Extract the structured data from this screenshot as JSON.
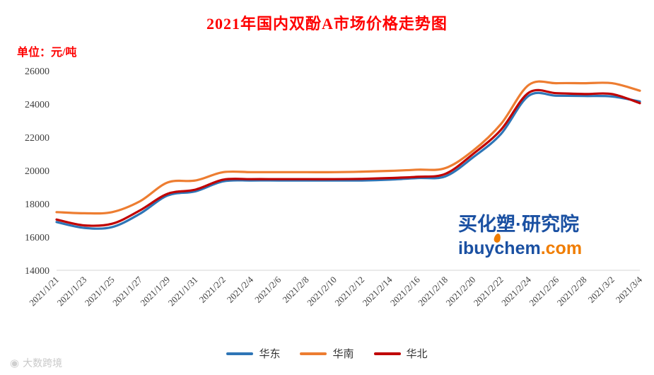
{
  "title": "2021年国内双酚A市场价格走势图",
  "unit_label": "单位：元/吨",
  "watermark": {
    "cn_left": "买化塑",
    "cn_dot": "·",
    "cn_right": "研究院",
    "en_name": "ibuychem",
    "en_suffix": ".com",
    "brand_blue": "#1a50a2",
    "brand_orange": "#f07d00"
  },
  "footer_logo": "大数跨境",
  "colors": {
    "title_red": "#fe0000",
    "axis_text": "#3f3f3f",
    "axis_line": "#d6d6d6"
  },
  "chart_data": {
    "type": "line",
    "title": "2021年国内双酚A市场价格走势图",
    "ylabel": "元/吨",
    "xlabel": "",
    "ylim": [
      14000,
      26000
    ],
    "ytick_step": 2000,
    "grid": false,
    "legend_position": "bottom",
    "categories": [
      "2021/1/21",
      "2021/1/23",
      "2021/1/25",
      "2021/1/27",
      "2021/1/29",
      "2021/1/31",
      "2021/2/2",
      "2021/2/4",
      "2021/2/6",
      "2021/2/8",
      "2021/2/10",
      "2021/2/12",
      "2021/2/14",
      "2021/2/16",
      "2021/2/18",
      "2021/2/20",
      "2021/2/22",
      "2021/2/24",
      "2021/2/26",
      "2021/2/28",
      "2021/3/2",
      "2021/3/4"
    ],
    "series": [
      {
        "name": "华东",
        "color": "#2e75b6",
        "values": [
          16900,
          16550,
          16600,
          17400,
          18500,
          18750,
          19350,
          19400,
          19400,
          19400,
          19400,
          19400,
          19450,
          19550,
          19650,
          20800,
          22200,
          24500,
          24500,
          24480,
          24450,
          24150
        ]
      },
      {
        "name": "华南",
        "color": "#ed7d31",
        "values": [
          17500,
          17430,
          17500,
          18150,
          19280,
          19400,
          19900,
          19900,
          19900,
          19900,
          19900,
          19930,
          19980,
          20050,
          20150,
          21200,
          22800,
          25150,
          25250,
          25250,
          25250,
          24800
        ]
      },
      {
        "name": "华北",
        "color": "#c00000",
        "values": [
          17050,
          16700,
          16800,
          17600,
          18600,
          18850,
          19450,
          19480,
          19480,
          19480,
          19480,
          19500,
          19550,
          19620,
          19800,
          21000,
          22450,
          24680,
          24650,
          24600,
          24600,
          24050
        ]
      }
    ]
  }
}
